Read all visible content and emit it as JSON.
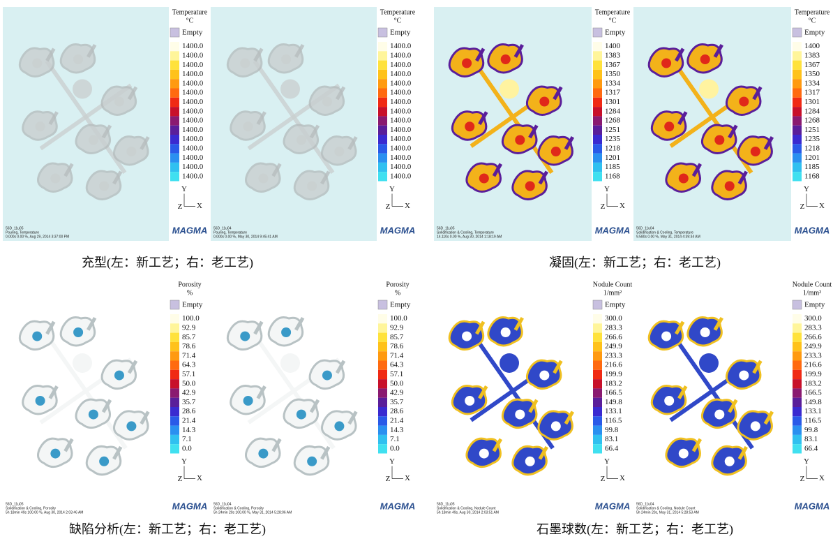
{
  "panels": [
    {
      "caption": "充型(左：新工艺；右：老工艺)",
      "views": [
        {
          "legend": {
            "title": "Temperature",
            "unit": "°C",
            "empty": "Empty",
            "labels": [
              "1400.0",
              "1400.0",
              "1400.0",
              "1400.0",
              "1400.0",
              "1400.0",
              "1400.0",
              "1400.0",
              "1400.0",
              "1400.0",
              "1400.0",
              "1400.0",
              "1400.0",
              "1400.0",
              "1400.0"
            ]
          },
          "axes": {
            "y": "Y",
            "z": "Z",
            "x": "X"
          },
          "logo": "MAGMA",
          "footer": [
            "56D_11u05",
            "Pouring, Temperature",
            "0.000s 0.00 %, Aug 29, 2014 3:37:00 PM"
          ]
        },
        {
          "legend": {
            "title": "Temperature",
            "unit": "°C",
            "empty": "Empty",
            "labels": [
              "1400.0",
              "1400.0",
              "1400.0",
              "1400.0",
              "1400.0",
              "1400.0",
              "1400.0",
              "1400.0",
              "1400.0",
              "1400.0",
              "1400.0",
              "1400.0",
              "1400.0",
              "1400.0",
              "1400.0"
            ]
          },
          "axes": {
            "y": "Y",
            "z": "Z",
            "x": "X"
          },
          "logo": "MAGMA",
          "footer": [
            "56D_11u04",
            "Pouring, Temperature",
            "0.000s 0.00 %, May 30, 2014 9:45:41 AM"
          ]
        }
      ]
    },
    {
      "caption": "凝固(左：新工艺；右：老工艺)",
      "views": [
        {
          "legend": {
            "title": "Temperature",
            "unit": "°C",
            "empty": "Empty",
            "labels": [
              "1400",
              "1383",
              "1367",
              "1350",
              "1334",
              "1317",
              "1301",
              "1284",
              "1268",
              "1251",
              "1235",
              "1218",
              "1201",
              "1185",
              "1168"
            ]
          },
          "axes": {
            "y": "Y",
            "z": "Z",
            "x": "X"
          },
          "logo": "MAGMA",
          "footer": [
            "56D_11u05",
            "Solidification & Cooling, Temperature",
            "14.110s 0.00 %, Aug 30, 2014 1:18:19 AM"
          ]
        },
        {
          "legend": {
            "title": "Temperature",
            "unit": "°C",
            "empty": "Empty",
            "labels": [
              "1400",
              "1383",
              "1367",
              "1350",
              "1334",
              "1317",
              "1301",
              "1284",
              "1268",
              "1251",
              "1235",
              "1218",
              "1201",
              "1185",
              "1168"
            ]
          },
          "axes": {
            "y": "Y",
            "z": "Z",
            "x": "X"
          },
          "logo": "MAGMA",
          "footer": [
            "56D_11u04",
            "Solidification & Cooling, Temperature",
            "9.580s 0.00 %, May 31, 2014 4:39:34 AM"
          ]
        }
      ]
    },
    {
      "caption": "缺陷分析(左：新工艺；右：老工艺)",
      "views": [
        {
          "legend": {
            "title": "Porosity",
            "unit": "%",
            "empty": "Empty",
            "labels": [
              "100.0",
              "92.9",
              "85.7",
              "78.6",
              "71.4",
              "64.3",
              "57.1",
              "50.0",
              "42.9",
              "35.7",
              "28.6",
              "21.4",
              "14.3",
              "7.1",
              "0.0"
            ]
          },
          "axes": {
            "y": "Y",
            "z": "Z",
            "x": "X"
          },
          "logo": "MAGMA",
          "footer": [
            "56D_11u05",
            "Solidification & Cooling, Porosity",
            "5h 18min 49s 100.00 %, Aug 30, 2014 2:03:46 AM"
          ]
        },
        {
          "legend": {
            "title": "Porosity",
            "unit": "%",
            "empty": "Empty",
            "labels": [
              "100.0",
              "92.9",
              "85.7",
              "78.6",
              "71.4",
              "64.3",
              "57.1",
              "50.0",
              "42.9",
              "35.7",
              "28.6",
              "21.4",
              "14.3",
              "7.1",
              "0.0"
            ]
          },
          "axes": {
            "y": "Y",
            "z": "Z",
            "x": "X"
          },
          "logo": "MAGMA",
          "footer": [
            "56D_11u04",
            "Solidification & Cooling, Porosity",
            "5h 24min 20s 100.00 %, May 31, 2014 5:28:06 AM"
          ]
        }
      ]
    },
    {
      "caption": "石墨球数(左：新工艺；右：老工艺)",
      "views": [
        {
          "legend": {
            "title": "Nodule Count",
            "unit": "1/mm²",
            "empty": "Empty",
            "labels": [
              "300.0",
              "283.3",
              "266.6",
              "249.9",
              "233.3",
              "216.6",
              "199.9",
              "183.2",
              "166.5",
              "149.8",
              "133.1",
              "116.5",
              "99.8",
              "83.1",
              "66.4"
            ]
          },
          "axes": {
            "y": "Y",
            "z": "Z",
            "x": "X"
          },
          "logo": "MAGMA",
          "footer": [
            "56D_11u05",
            "Solidification & Cooling, Nodule Count",
            "5h 18min 49s, Aug 30, 2014 2:03:51 AM"
          ]
        },
        {
          "legend": {
            "title": "Nodule Count",
            "unit": "1/mm²",
            "empty": "Empty",
            "labels": [
              "300.0",
              "283.3",
              "266.6",
              "249.9",
              "233.3",
              "216.6",
              "199.9",
              "183.2",
              "166.5",
              "149.8",
              "133.1",
              "116.5",
              "99.8",
              "83.1",
              "66.4"
            ]
          },
          "axes": {
            "y": "Y",
            "z": "Z",
            "x": "X"
          },
          "logo": "MAGMA",
          "footer": [
            "56D_11u04",
            "Solidification & Cooling, Nodule Count",
            "5h 24min 20s, May 31, 2014 5:28:53 AM"
          ]
        }
      ]
    }
  ]
}
